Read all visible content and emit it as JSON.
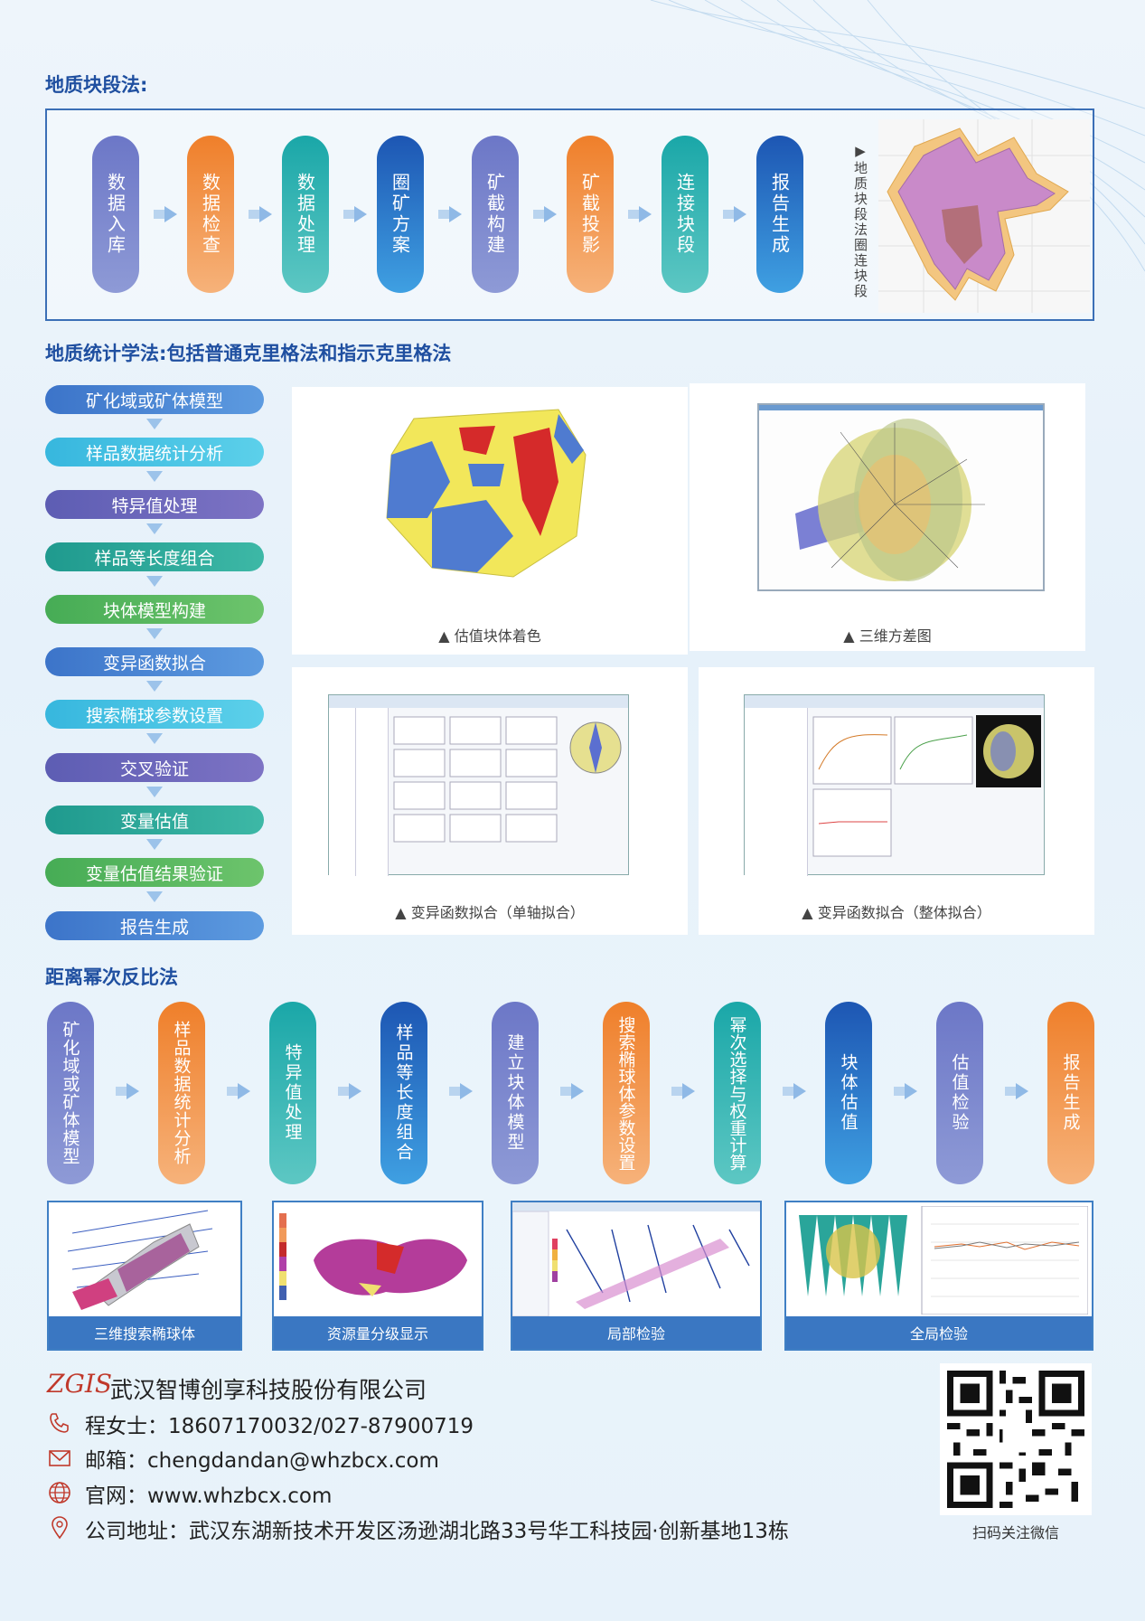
{
  "section1": {
    "title": "地质块段法:",
    "steps": [
      "数据入库",
      "数据检查",
      "数据处理",
      "圈矿方案",
      "矿截构建",
      "矿截投影",
      "连接块段",
      "报告生成"
    ],
    "image_caption": "▶地质块段法圈连块段"
  },
  "section2": {
    "title": "地质统计学法:包括普通克里格法和指示克里格法",
    "steps": [
      "矿化域或矿体模型",
      "样品数据统计分析",
      "特异值处理",
      "样品等长度组合",
      "块体模型构建",
      "变异函数拟合",
      "搜索椭球参数设置",
      "交叉验证",
      "变量估值",
      "变量估值结果验证",
      "报告生成"
    ],
    "captions": [
      "▲ 估值块体着色",
      "▲ 三维方差图",
      "▲ 变异函数拟合（单轴拟合）",
      "▲ 变异函数拟合（整体拟合）"
    ]
  },
  "section3": {
    "title": "距离幂次反比法",
    "steps": [
      "矿化域或矿体模型",
      "样品数据统计分析",
      "特异值处理",
      "样品等长度组合",
      "建立块体模型",
      "搜索椭球体参数设置",
      "幂次选择与权重计算",
      "块体估值",
      "估值检验",
      "报告生成"
    ],
    "thumbs": [
      "三维搜索椭球体",
      "资源量分级显示",
      "局部检验",
      "全局检验"
    ]
  },
  "footer": {
    "logo": "ZGIS",
    "company": "武汉智博创享科技股份有限公司",
    "phone": "程女士：18607170032/027-87900719",
    "email": "邮箱：chengdandan@whzbcx.com",
    "web": "官网：www.whzbcx.com",
    "address": "公司地址：武汉东湖新技术开发区汤逊湖北路33号华工科技园·创新基地13栋",
    "qr_caption": "扫码关注微信"
  },
  "colors": {
    "accent": "#1f4fa0",
    "purple": "#7a85cf",
    "orange": "#f08a3a",
    "teal": "#2fb5b2",
    "blue": "#2a6fc4"
  }
}
